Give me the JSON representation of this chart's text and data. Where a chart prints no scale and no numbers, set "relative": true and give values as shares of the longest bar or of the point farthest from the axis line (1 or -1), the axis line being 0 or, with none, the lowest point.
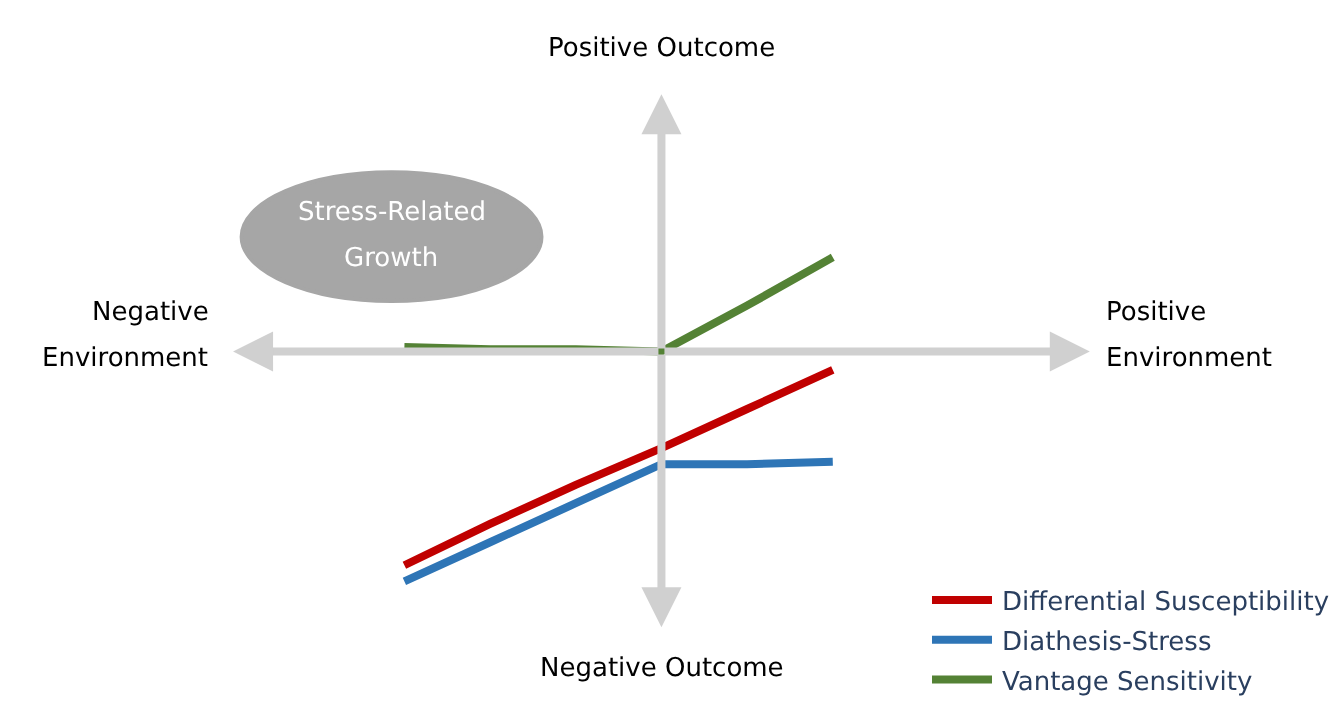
{
  "chart_data": {
    "type": "line",
    "relative": true,
    "annotations": [
      "Positive Outcome",
      "Negative Outcome",
      "Negative",
      "Environment",
      "Positive",
      "Environment",
      "Stress-Related",
      "Growth"
    ],
    "categories": [
      null,
      null,
      null,
      null,
      null,
      null
    ],
    "series": [
      {
        "name": "Differential Susceptibility",
        "color": "#c00000",
        "values": [
          -0.93,
          -0.75,
          -0.58,
          -0.42,
          -0.25,
          -0.08
        ]
      },
      {
        "name": "Diathesis-Stress",
        "color": "#2e75b6",
        "values": [
          -1,
          -0.83,
          -0.66,
          -0.49,
          -0.49,
          -0.48
        ]
      },
      {
        "name": "Vantage Sensitivity",
        "color": "#548235",
        "values": [
          0.02,
          0.01,
          0.01,
          0,
          0.2,
          0.41
        ]
      }
    ],
    "legend": "bottom right",
    "marker": "none",
    "line_style": "solid"
  }
}
